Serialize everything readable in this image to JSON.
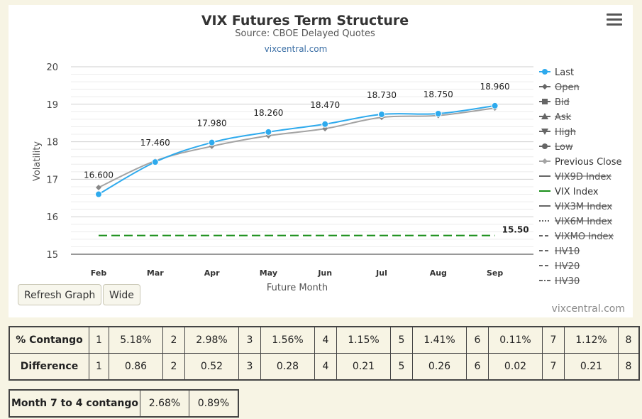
{
  "chart_data": {
    "type": "line",
    "title": "VIX Futures Term Structure",
    "subtitle": "Source: CBOE Delayed Quotes",
    "credit_link": "vixcentral.com",
    "xlabel": "Future Month",
    "ylabel": "Volatility",
    "categories": [
      "Feb",
      "Mar",
      "Apr",
      "May",
      "Jun",
      "Jul",
      "Aug",
      "Sep"
    ],
    "ylim": [
      15,
      20
    ],
    "yticks": [
      "15",
      "16",
      "17",
      "18",
      "19",
      "20"
    ],
    "grid": true,
    "legend_position": "right",
    "series": [
      {
        "name": "Last",
        "color": "#2eaaed",
        "values": [
          16.6,
          17.46,
          17.98,
          18.26,
          18.47,
          18.73,
          18.75,
          18.96
        ],
        "labels": [
          "16.600",
          "17.460",
          "17.980",
          "18.260",
          "18.470",
          "18.730",
          "18.750",
          "18.960"
        ]
      },
      {
        "name": "Previous Close",
        "color": "#a3a3a3",
        "values": [
          16.78,
          17.49,
          17.88,
          18.16,
          18.35,
          18.65,
          18.7,
          18.9
        ]
      },
      {
        "name": "VIX Index",
        "color": "#1a8f1a",
        "constant": 15.5,
        "label": "15.50",
        "dashed": true
      }
    ],
    "legend": [
      {
        "name": "Last",
        "enabled": true,
        "symbol": "circle",
        "color": "#2eaaed"
      },
      {
        "name": "Open",
        "enabled": false,
        "symbol": "diamond",
        "color": "#666666"
      },
      {
        "name": "Bid",
        "enabled": false,
        "symbol": "square",
        "color": "#666666"
      },
      {
        "name": "Ask",
        "enabled": false,
        "symbol": "triangle",
        "color": "#666666"
      },
      {
        "name": "High",
        "enabled": false,
        "symbol": "triangle-down",
        "color": "#666666"
      },
      {
        "name": "Low",
        "enabled": false,
        "symbol": "circle",
        "color": "#666666"
      },
      {
        "name": "Previous Close",
        "enabled": true,
        "symbol": "diamond",
        "color": "#a3a3a3"
      },
      {
        "name": "VIX9D Index",
        "enabled": false,
        "symbol": "line",
        "color": "#666666"
      },
      {
        "name": "VIX Index",
        "enabled": true,
        "symbol": "line",
        "color": "#1a8f1a"
      },
      {
        "name": "VIX3M Index",
        "enabled": false,
        "symbol": "line",
        "color": "#666666"
      },
      {
        "name": "VIX6M Index",
        "enabled": false,
        "symbol": "dotted",
        "color": "#666666"
      },
      {
        "name": "VIXMO Index",
        "enabled": false,
        "symbol": "dashed",
        "color": "#666666"
      },
      {
        "name": "HV10",
        "enabled": false,
        "symbol": "dashed",
        "color": "#666666"
      },
      {
        "name": "HV20",
        "enabled": false,
        "symbol": "dashed",
        "color": "#666666"
      },
      {
        "name": "HV30",
        "enabled": false,
        "symbol": "dashdot",
        "color": "#666666"
      }
    ]
  },
  "buttons": {
    "refresh_label": "Refresh Graph",
    "wide_label": "Wide"
  },
  "watermark": "vixcentral.com",
  "contango_table": {
    "contango_label": "% Contango",
    "difference_label": "Difference",
    "contango_row": [
      {
        "n": "1",
        "v": "5.18%"
      },
      {
        "n": "2",
        "v": "2.98%"
      },
      {
        "n": "3",
        "v": "1.56%"
      },
      {
        "n": "4",
        "v": "1.15%"
      },
      {
        "n": "5",
        "v": "1.41%"
      },
      {
        "n": "6",
        "v": "0.11%"
      },
      {
        "n": "7",
        "v": "1.12%"
      },
      {
        "n": "8",
        "v": ""
      }
    ],
    "difference_row": [
      {
        "n": "1",
        "v": "0.86"
      },
      {
        "n": "2",
        "v": "0.52"
      },
      {
        "n": "3",
        "v": "0.28"
      },
      {
        "n": "4",
        "v": "0.21"
      },
      {
        "n": "5",
        "v": "0.26"
      },
      {
        "n": "6",
        "v": "0.02"
      },
      {
        "n": "7",
        "v": "0.21"
      },
      {
        "n": "8",
        "v": ""
      }
    ]
  },
  "month_table": {
    "label": "Month 7 to 4 contango",
    "value_1": "2.68%",
    "value_2": "0.89%"
  }
}
